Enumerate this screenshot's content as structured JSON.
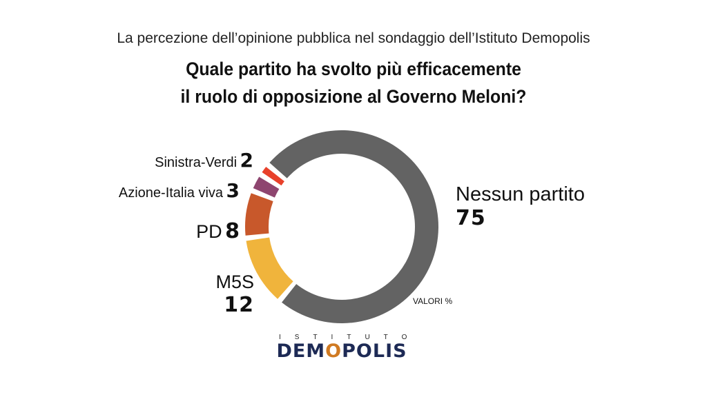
{
  "subtitle": "La percezione dell’opinione pubblica nel sondaggio dell’Istituto Demopolis",
  "title_line1": "Quale partito ha svolto più efficacemente",
  "title_line2": "il ruolo di opposizione al Governo Meloni?",
  "units_note": "VALORI %",
  "logo": {
    "top": "ISTITUTO",
    "main_left": "DEM",
    "main_o": "O",
    "main_right": "POLIS"
  },
  "colors": {
    "Nessun partito": "#636363",
    "M5S": "#f0b43c",
    "PD": "#c8582b",
    "Azione-Italia viva": "#8e456f",
    "Sinistra-Verdi": "#e8412b"
  },
  "chart_data": {
    "type": "pie",
    "style": "donut",
    "title": "Quale partito ha svolto più efficacemente il ruolo di opposizione al Governo Meloni?",
    "categories": [
      "Nessun partito",
      "M5S",
      "PD",
      "Azione-Italia viva",
      "Sinistra-Verdi"
    ],
    "values": [
      75,
      12,
      8,
      3,
      2
    ],
    "unit": "%"
  }
}
